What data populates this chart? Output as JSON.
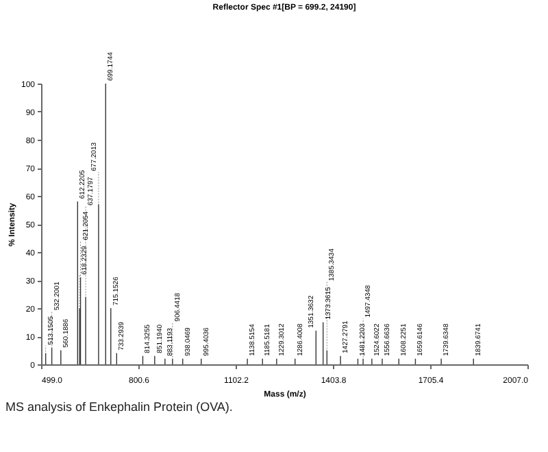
{
  "chart_data": {
    "type": "bar",
    "title": "Reflector Spec #1[BP = 699.2, 24190]",
    "xlabel": "Mass (m/z)",
    "ylabel": "% Intensity",
    "annotations": [
      "MS analysis of Enkephalin Protein (OVA).",
      {
        "text": "513.1505",
        "x": 513.1505,
        "y": 4
      },
      {
        "text": "532.2001",
        "x": 532.2001,
        "y": 6
      },
      {
        "text": "560.1886",
        "x": 560.1886,
        "y": 5
      },
      {
        "text": "612.2205",
        "x": 612.2205,
        "y": 58
      },
      {
        "text": "618.2329",
        "x": 618.2329,
        "y": 20
      },
      {
        "text": "621.2054",
        "x": 621.2054,
        "y": 31
      },
      {
        "text": "637.1797",
        "x": 637.1797,
        "y": 24
      },
      {
        "text": "677.2013",
        "x": 677.2013,
        "y": 57
      },
      {
        "text": "699.1744",
        "x": 699.1744,
        "y": 100
      },
      {
        "text": "715.1526",
        "x": 715.1526,
        "y": 20
      },
      {
        "text": "733.2939",
        "x": 733.2939,
        "y": 4
      },
      {
        "text": "814.3255",
        "x": 814.3255,
        "y": 3
      },
      {
        "text": "851.1940",
        "x": 851.194,
        "y": 3
      },
      {
        "text": "883.1193",
        "x": 883.1193,
        "y": 2
      },
      {
        "text": "906.4418",
        "x": 906.4418,
        "y": 2
      },
      {
        "text": "938.0469",
        "x": 938.0469,
        "y": 2
      },
      {
        "text": "995.4036",
        "x": 995.4036,
        "y": 2
      },
      {
        "text": "1138.5154",
        "x": 1138.5154,
        "y": 2
      },
      {
        "text": "1185.5181",
        "x": 1185.5181,
        "y": 2
      },
      {
        "text": "1229.3012",
        "x": 1229.3012,
        "y": 2
      },
      {
        "text": "1286.4008",
        "x": 1286.4008,
        "y": 2
      },
      {
        "text": "1351.3632",
        "x": 1351.3632,
        "y": 12
      },
      {
        "text": "1373.3615",
        "x": 1373.3615,
        "y": 15
      },
      {
        "text": "1385.3434",
        "x": 1385.3434,
        "y": 5
      },
      {
        "text": "1427.2791",
        "x": 1427.2791,
        "y": 3
      },
      {
        "text": "1481.2203",
        "x": 1481.2203,
        "y": 2
      },
      {
        "text": "1497.4348",
        "x": 1497.4348,
        "y": 2
      },
      {
        "text": "1524.6022",
        "x": 1524.6022,
        "y": 2
      },
      {
        "text": "1556.6636",
        "x": 1556.6636,
        "y": 2
      },
      {
        "text": "1608.2251",
        "x": 1608.2251,
        "y": 2
      },
      {
        "text": "1659.6146",
        "x": 1659.6146,
        "y": 2
      },
      {
        "text": "1739.6348",
        "x": 1739.6348,
        "y": 2
      },
      {
        "text": "1839.6741",
        "x": 1839.6741,
        "y": 2
      }
    ],
    "x": [
      513.1505,
      532.2001,
      560.1886,
      612.2205,
      618.2329,
      621.2054,
      637.1797,
      677.2013,
      699.1744,
      715.1526,
      733.2939,
      814.3255,
      851.194,
      883.1193,
      906.4418,
      938.0469,
      995.4036,
      1138.5154,
      1185.5181,
      1229.3012,
      1286.4008,
      1351.3632,
      1373.3615,
      1385.3434,
      1427.2791,
      1481.2203,
      1497.4348,
      1524.6022,
      1556.6636,
      1608.2251,
      1659.6146,
      1739.6348,
      1839.6741
    ],
    "values": [
      4,
      6,
      5,
      58,
      20,
      31,
      24,
      57,
      100,
      20,
      4,
      3,
      3,
      2,
      2,
      2,
      2,
      2,
      2,
      2,
      2,
      12,
      15,
      5,
      3,
      2,
      2,
      2,
      2,
      2,
      2,
      2,
      2
    ],
    "color": "#333333",
    "xlim": [
      499.0,
      2007.0
    ],
    "xticks": [
      {
        "value": 499.0,
        "label": "499.0"
      },
      {
        "value": 800.6,
        "label": "800.6"
      },
      {
        "value": 1102.2,
        "label": "1102.2"
      },
      {
        "value": 1403.8,
        "label": "1403.8"
      },
      {
        "value": 1705.4,
        "label": "1705.4"
      },
      {
        "value": 2007.0,
        "label": "2007.0"
      }
    ],
    "ylim": [
      0,
      100
    ],
    "yticks": [
      0,
      10,
      20,
      30,
      40,
      50,
      60,
      70,
      80,
      90,
      100
    ]
  }
}
